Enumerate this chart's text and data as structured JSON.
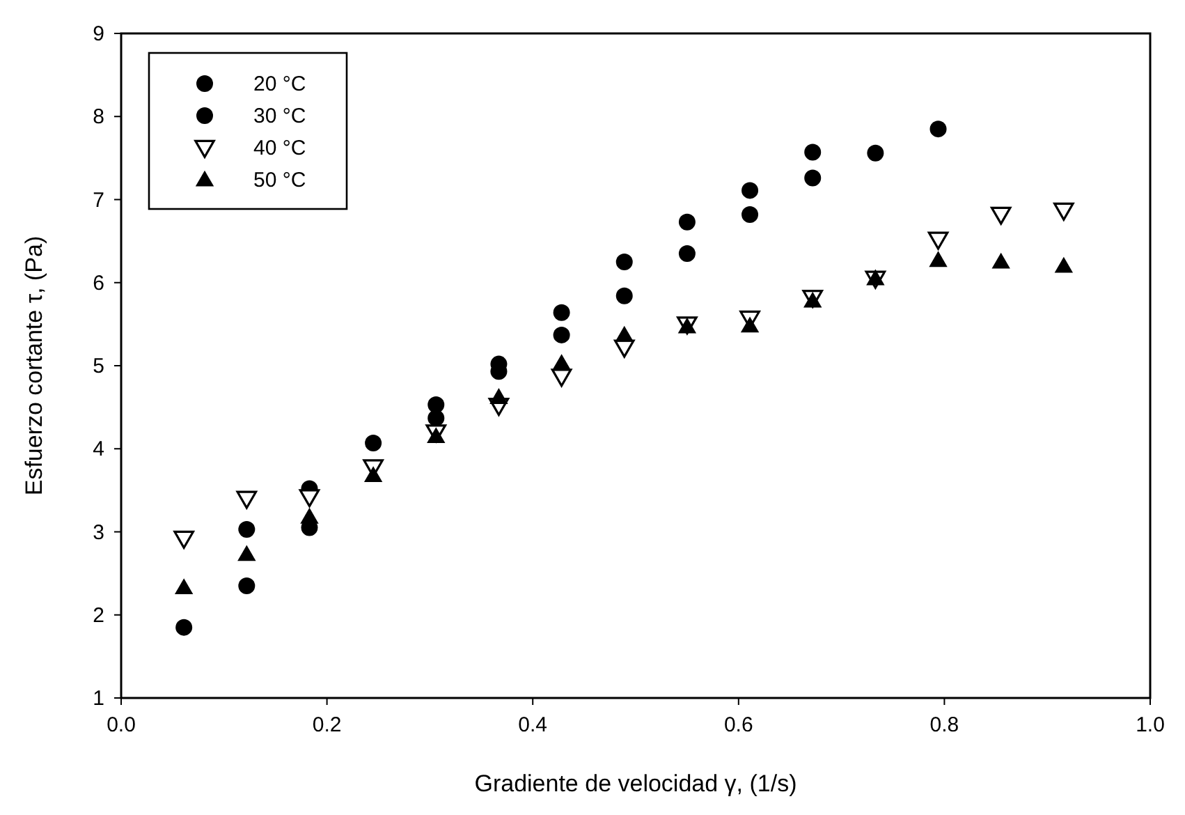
{
  "chart_data": {
    "type": "scatter",
    "xlabel": "Gradiente de velocidad γ, (1/s)",
    "ylabel": "Esfuerzo cortante τ, (Pa)",
    "x": [
      0.061,
      0.122,
      0.183,
      0.245,
      0.306,
      0.367,
      0.428,
      0.489,
      0.55,
      0.611,
      0.672,
      0.733,
      0.794,
      0.855,
      0.916
    ],
    "xlim": [
      0,
      1
    ],
    "xticks": [
      {
        "value": 0,
        "label": "0.0"
      },
      {
        "value": 0.2,
        "label": "0.2"
      },
      {
        "value": 0.4,
        "label": "0.4"
      },
      {
        "value": 0.6,
        "label": "0.6"
      },
      {
        "value": 0.8,
        "label": "0.8"
      },
      {
        "value": 1,
        "label": "1.0"
      }
    ],
    "ylim": [
      1,
      9
    ],
    "yticks": [
      1,
      2,
      3,
      4,
      5,
      6,
      7,
      8,
      9
    ],
    "grid": false,
    "legend": "top left",
    "series": [
      {
        "name": "20 °C",
        "color": "#000000",
        "marker": "circle",
        "values": [
          1.85,
          3.03,
          3.52,
          4.07,
          4.53,
          5.02,
          5.64,
          6.25,
          6.73,
          7.11,
          7.57,
          7.56,
          7.85,
          null,
          null
        ]
      },
      {
        "name": "30 °C",
        "color": "#000000",
        "marker": "circle",
        "values": [
          null,
          2.35,
          3.05,
          null,
          4.37,
          4.93,
          5.37,
          5.84,
          6.35,
          6.82,
          7.26,
          null,
          null,
          null,
          null
        ]
      },
      {
        "name": "40 °C",
        "color": "#000000",
        "marker": "triangle-down",
        "values": [
          2.92,
          3.4,
          3.42,
          3.78,
          4.2,
          4.52,
          4.87,
          5.22,
          5.5,
          5.57,
          5.82,
          6.05,
          6.52,
          6.82,
          6.87
        ]
      },
      {
        "name": "50 °C",
        "color": "#000000",
        "marker": "triangle",
        "values": [
          2.33,
          2.73,
          3.18,
          3.68,
          4.15,
          4.62,
          5.03,
          5.37,
          5.47,
          5.48,
          5.78,
          6.05,
          6.27,
          6.25,
          6.2
        ]
      }
    ]
  }
}
